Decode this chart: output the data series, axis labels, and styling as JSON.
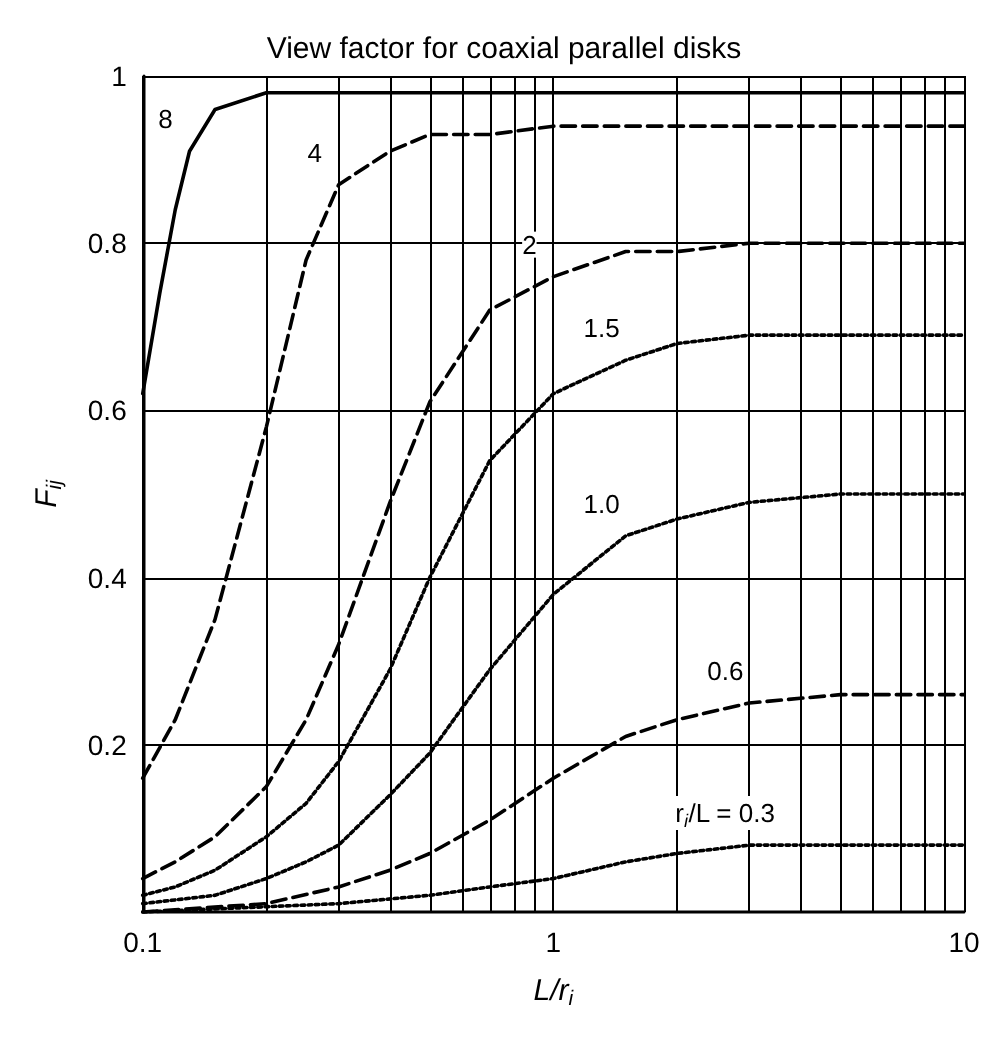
{
  "chart_data": {
    "type": "line",
    "title": "View factor for coaxial parallel disks",
    "xlabel": "L/r$_{i}$",
    "ylabel": "F$_{ij}$",
    "log": "x",
    "grid": true,
    "marker": "none",
    "xlim": [
      0.1,
      10
    ],
    "ylim": [
      0,
      1
    ],
    "xticks": [
      0.1,
      {
        "value": 0.2,
        "label": null
      },
      {
        "value": 0.3,
        "label": null
      },
      {
        "value": 0.4,
        "label": null
      },
      {
        "value": 0.5,
        "label": null
      },
      {
        "value": 0.6,
        "label": null
      },
      {
        "value": 0.7,
        "label": null
      },
      {
        "value": 0.8,
        "label": null
      },
      {
        "value": 0.9,
        "label": null
      },
      1,
      {
        "value": 2,
        "label": null
      },
      {
        "value": 3,
        "label": null
      },
      {
        "value": 4,
        "label": null
      },
      {
        "value": 5,
        "label": null
      },
      {
        "value": 6,
        "label": null
      },
      {
        "value": 7,
        "label": null
      },
      {
        "value": 8,
        "label": null
      },
      {
        "value": 9,
        "label": null
      },
      10
    ],
    "yticks": [
      0.2,
      0.4,
      0.6,
      0.8,
      1
    ],
    "series": [
      {
        "color": "#000000",
        "line_style": "solid",
        "x": [
          0.1,
          0.11,
          0.12,
          0.13,
          0.15,
          0.2,
          0.3,
          0.5,
          1,
          10
        ],
        "values": [
          0.62,
          0.74,
          0.84,
          0.91,
          0.96,
          0.98,
          0.98,
          0.98,
          0.98,
          0.98
        ]
      },
      {
        "color": "#000000",
        "line_style": "dashed",
        "x": [
          0.1,
          0.12,
          0.15,
          0.2,
          0.25,
          0.3,
          0.4,
          0.5,
          0.7,
          1,
          2,
          10
        ],
        "values": [
          0.16,
          0.23,
          0.35,
          0.58,
          0.78,
          0.87,
          0.91,
          0.93,
          0.93,
          0.94,
          0.94,
          0.94
        ]
      },
      {
        "color": "#000000",
        "line_style": "dashed",
        "x": [
          0.1,
          0.12,
          0.15,
          0.2,
          0.25,
          0.3,
          0.4,
          0.5,
          0.7,
          1,
          1.5,
          2,
          3,
          5,
          10
        ],
        "values": [
          0.04,
          0.06,
          0.09,
          0.15,
          0.23,
          0.32,
          0.49,
          0.61,
          0.72,
          0.76,
          0.79,
          0.79,
          0.8,
          0.8,
          0.8
        ]
      },
      {
        "color": "#000000",
        "line_style": "dotted",
        "x": [
          0.1,
          0.12,
          0.15,
          0.2,
          0.25,
          0.3,
          0.4,
          0.5,
          0.7,
          1,
          1.5,
          2,
          3,
          5,
          10
        ],
        "values": [
          0.02,
          0.03,
          0.05,
          0.09,
          0.13,
          0.18,
          0.29,
          0.4,
          0.54,
          0.62,
          0.66,
          0.68,
          0.69,
          0.69,
          0.69
        ]
      },
      {
        "color": "#000000",
        "line_style": "dotted",
        "x": [
          0.1,
          0.15,
          0.2,
          0.25,
          0.3,
          0.4,
          0.5,
          0.7,
          1,
          1.5,
          2,
          3,
          5,
          10
        ],
        "values": [
          0.01,
          0.02,
          0.04,
          0.06,
          0.08,
          0.14,
          0.19,
          0.29,
          0.38,
          0.45,
          0.47,
          0.49,
          0.5,
          0.5
        ]
      },
      {
        "color": "#000000",
        "line_style": "dashed",
        "x": [
          0.1,
          0.2,
          0.3,
          0.4,
          0.5,
          0.7,
          1,
          1.5,
          2,
          3,
          5,
          10
        ],
        "values": [
          0.0,
          0.01,
          0.03,
          0.05,
          0.07,
          0.11,
          0.16,
          0.21,
          0.23,
          0.25,
          0.26,
          0.26
        ]
      },
      {
        "color": "#000000",
        "line_style": "dotted",
        "x": [
          0.1,
          0.3,
          0.5,
          0.7,
          1,
          1.5,
          2,
          3,
          5,
          10
        ],
        "values": [
          0.0,
          0.01,
          0.02,
          0.03,
          0.04,
          0.06,
          0.07,
          0.08,
          0.08,
          0.08
        ]
      }
    ],
    "annotations": [
      {
        "text": "8",
        "x": 0.13,
        "y": 0.91
      },
      {
        "text": "4",
        "x": 0.3,
        "y": 0.87
      },
      {
        "text": "2",
        "x": 1,
        "y": 0.76
      },
      {
        "text": "1.5",
        "x": 1.5,
        "y": 0.66
      },
      {
        "text": "1.0",
        "x": 1.5,
        "y": 0.45
      },
      {
        "text": "0.6",
        "x": 3,
        "y": 0.25
      },
      {
        "text": "r$_{i}$/L = 0.3",
        "x": 3,
        "y": 0.08
      }
    ]
  }
}
